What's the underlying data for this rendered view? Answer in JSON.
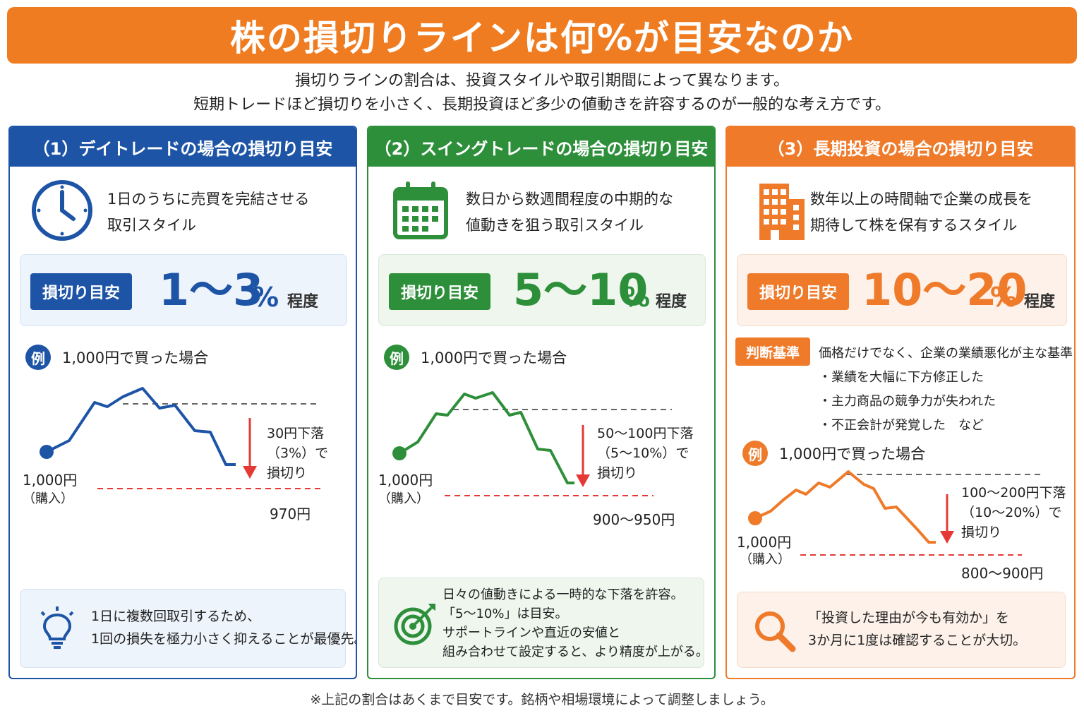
{
  "title": "株の損切りラインは何%が目安なのか",
  "intro": {
    "line1": "損切りラインの割合は、投資スタイルや取引期間によって異なります。",
    "line2": "短期トレードほど損切りを小さく、長期投資ほど多少の値動きを許容するのが一般的な考え方です。"
  },
  "colors": {
    "blue": "#1d54a6",
    "green": "#2e8f3b",
    "orange": "#ee7a2a",
    "red": "#e53935"
  },
  "panels": [
    {
      "title": "（1）デイトレードの場合の損切り目安",
      "icon": "clock-icon",
      "desc1": "1日のうちに売買を完結させる",
      "desc2": "取引スタイル",
      "guide_label": "損切り目安",
      "guide_range": "1～3",
      "guide_pct": "%",
      "guide_note": "程度",
      "example_badge": "例",
      "example_text": "1,000円で買った場合",
      "buy_price": "1,000円",
      "buy_label": "（購入）",
      "drop1": "30円下落",
      "drop2": "（3%）で",
      "drop3": "損切り",
      "stop_price": "970円",
      "tip_icon": "lightbulb-icon",
      "tip1": "1日に複数回取引するため、",
      "tip2": "1回の損失を極力小さく抑えることが最優先。"
    },
    {
      "title": "（2）スイングトレードの場合の損切り目安",
      "icon": "calendar-icon",
      "desc1": "数日から数週間程度の中期的な",
      "desc2": "値動きを狙う取引スタイル",
      "guide_label": "損切り目安",
      "guide_range": "5～10",
      "guide_pct": "%",
      "guide_note": "程度",
      "example_badge": "例",
      "example_text": "1,000円で買った場合",
      "buy_price": "1,000円",
      "buy_label": "（購入）",
      "drop1": "50～100円下落",
      "drop2": "（5～10%）で",
      "drop3": "損切り",
      "stop_price": "900～950円",
      "tip_icon": "target-icon",
      "tip1": "日々の値動きによる一時的な下落を許容。",
      "tip2": "「5～10%」は目安。",
      "tip3": "サポートラインや直近の安値と",
      "tip4": "組み合わせて設定すると、より精度が上がる。"
    },
    {
      "title": "（3）長期投資の場合の損切り目安",
      "icon": "building-icon",
      "desc1": "数年以上の時間軸で企業の成長を",
      "desc2": "期待して株を保有するスタイル",
      "guide_label": "損切り目安",
      "guide_range": "10～20",
      "guide_pct": "%",
      "guide_note": "程度",
      "criteria_label": "判断基準",
      "criteria_main": "価格だけでなく、企業の業績悪化が主な基準",
      "criteria_items": [
        "業績を大幅に下方修正した",
        "主力商品の競争力が失われた",
        "不正会計が発覚した　など"
      ],
      "example_badge": "例",
      "example_text": "1,000円で買った場合",
      "buy_price": "1,000円",
      "buy_label": "（購入）",
      "drop1": "100～200円下落",
      "drop2": "（10～20%）で",
      "drop3": "損切り",
      "stop_price": "800～900円",
      "tip_icon": "magnifier-icon",
      "tip1": "「投資した理由が今も有効か」を",
      "tip2": "3か月に1度は確認することが大切。"
    }
  ],
  "footnote": "※上記の割合はあくまで目安です。銘柄や相場環境によって調整しましょう。"
}
